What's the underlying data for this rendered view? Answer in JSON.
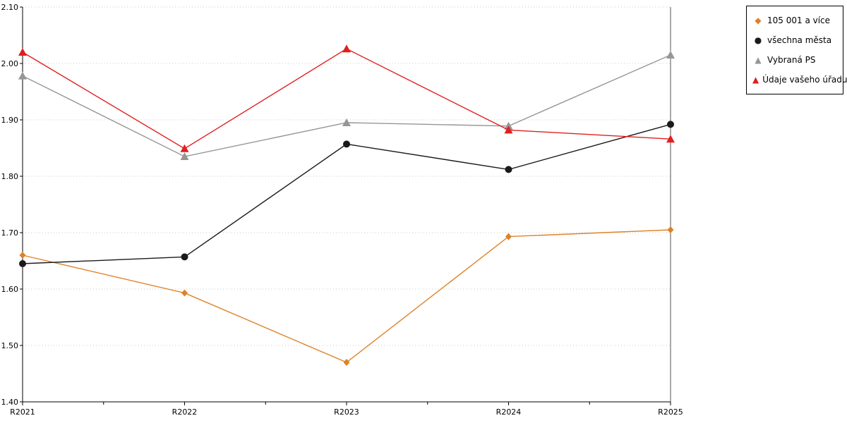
{
  "chart_data": {
    "type": "line",
    "x": [
      "R2021",
      "R2022",
      "R2023",
      "R2024",
      "R2025"
    ],
    "ylim": [
      1.4,
      2.1
    ],
    "ytick_step": 0.1,
    "ytick_labels": [
      "1.40",
      "1.50",
      "1.60",
      "1.70",
      "1.80",
      "1.90",
      "2.00",
      "2.10"
    ],
    "grid": true,
    "legend_position": "top-right",
    "series": [
      {
        "name": "105 001 a více",
        "marker": "diamond",
        "color": "#DE8227",
        "values": [
          1.66,
          1.593,
          1.47,
          1.693,
          1.705
        ]
      },
      {
        "name": "všechna města",
        "marker": "circle",
        "color": "#1A1A1A",
        "values": [
          1.645,
          1.657,
          1.857,
          1.812,
          1.892
        ]
      },
      {
        "name": "Vybraná PS",
        "marker": "triangle",
        "color": "#969696",
        "values": [
          1.978,
          1.835,
          1.895,
          1.889,
          2.015
        ]
      },
      {
        "name": "Údaje vašeho úřadu",
        "marker": "triangle",
        "color": "#E02020",
        "values": [
          2.02,
          1.849,
          2.026,
          1.882,
          1.866
        ]
      }
    ]
  }
}
